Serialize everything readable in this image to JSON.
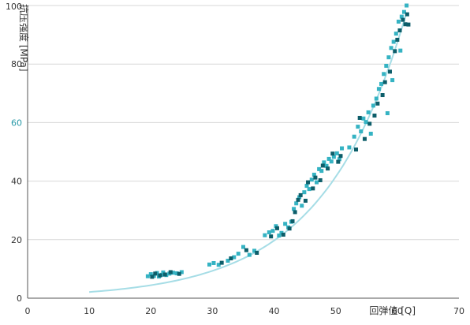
{
  "chart_data": {
    "type": "scatter",
    "xlabel": "回弹值 [Q]",
    "ylabel": "抗压强度 [MPa]",
    "xlim": [
      0,
      70
    ],
    "ylim": [
      0,
      100
    ],
    "xticks": [
      "0",
      "10",
      "20",
      "30",
      "40",
      "50",
      "60",
      "70"
    ],
    "yticks": [
      "0",
      "20",
      "40",
      "60",
      "80",
      "100"
    ],
    "highlight_ytick": "60",
    "grid": "horizontal",
    "legend": "none",
    "colors": {
      "light_points": "#35b3c3",
      "dark_points": "#0d5e6a",
      "trendline": "#a6dde6",
      "gridline": "#d7d7d7",
      "axis": "#555555",
      "accent_tick": "#2a9aa8"
    },
    "trendline": {
      "type": "exponential",
      "a": 1.0,
      "b": 0.0745,
      "x_range": [
        10,
        61.5
      ]
    },
    "series": [
      {
        "values": [
          [
            19.5,
            7.5
          ],
          [
            20.0,
            8.2
          ],
          [
            20.5,
            7.6
          ],
          [
            21.0,
            8.6
          ],
          [
            21.3,
            7.4
          ],
          [
            21.8,
            8.0
          ],
          [
            22.0,
            8.8
          ],
          [
            22.5,
            7.9
          ],
          [
            23.0,
            8.4
          ],
          [
            23.6,
            8.7
          ],
          [
            24.2,
            8.5
          ],
          [
            25.0,
            8.9
          ],
          [
            29.5,
            11.5
          ],
          [
            30.2,
            12.0
          ],
          [
            31.0,
            11.4
          ],
          [
            32.5,
            12.8
          ],
          [
            33.5,
            14.0
          ],
          [
            34.2,
            15.2
          ],
          [
            35.0,
            17.5
          ],
          [
            36.0,
            14.8
          ],
          [
            36.8,
            16.2
          ],
          [
            38.5,
            21.5
          ],
          [
            39.2,
            22.5
          ],
          [
            39.8,
            23.0
          ],
          [
            40.3,
            24.6
          ],
          [
            40.8,
            21.4
          ],
          [
            41.2,
            22.3
          ],
          [
            41.8,
            25.4
          ],
          [
            42.3,
            24.2
          ],
          [
            42.8,
            26.1
          ],
          [
            43.2,
            30.5
          ],
          [
            43.6,
            32.4
          ],
          [
            44.1,
            34.5
          ],
          [
            44.5,
            31.6
          ],
          [
            44.9,
            36.2
          ],
          [
            45.3,
            38.4
          ],
          [
            45.7,
            37.3
          ],
          [
            46.1,
            40.5
          ],
          [
            46.5,
            42.2
          ],
          [
            46.9,
            39.6
          ],
          [
            47.3,
            44.1
          ],
          [
            47.7,
            43.5
          ],
          [
            48.1,
            46.4
          ],
          [
            48.5,
            45.2
          ],
          [
            48.9,
            47.6
          ],
          [
            49.3,
            46.7
          ],
          [
            49.7,
            48.3
          ],
          [
            50.2,
            49.5
          ],
          [
            50.6,
            47.5
          ],
          [
            51.0,
            51.2
          ],
          [
            52.2,
            51.5
          ],
          [
            53.0,
            55.2
          ],
          [
            53.6,
            58.6
          ],
          [
            54.1,
            57.0
          ],
          [
            54.5,
            61.4
          ],
          [
            54.9,
            60.2
          ],
          [
            55.3,
            63.5
          ],
          [
            55.7,
            56.2
          ],
          [
            56.1,
            65.8
          ],
          [
            56.6,
            68.2
          ],
          [
            57.0,
            71.5
          ],
          [
            57.4,
            73.2
          ],
          [
            57.8,
            76.6
          ],
          [
            58.2,
            79.4
          ],
          [
            58.6,
            82.3
          ],
          [
            59.0,
            85.5
          ],
          [
            59.4,
            87.6
          ],
          [
            59.8,
            90.4
          ],
          [
            60.2,
            94.5
          ],
          [
            60.7,
            96.2
          ],
          [
            61.1,
            97.8
          ],
          [
            61.5,
            100.0
          ],
          [
            60.5,
            84.6
          ],
          [
            59.2,
            74.5
          ],
          [
            58.4,
            63.2
          ]
        ]
      },
      {
        "values": [
          [
            20.2,
            7.3
          ],
          [
            20.7,
            8.4
          ],
          [
            21.5,
            7.8
          ],
          [
            22.3,
            8.1
          ],
          [
            23.2,
            8.9
          ],
          [
            24.6,
            8.3
          ],
          [
            31.5,
            12.1
          ],
          [
            33.0,
            13.6
          ],
          [
            35.5,
            16.4
          ],
          [
            37.2,
            15.5
          ],
          [
            39.5,
            21.1
          ],
          [
            40.5,
            23.9
          ],
          [
            41.5,
            21.7
          ],
          [
            42.5,
            23.8
          ],
          [
            43.0,
            26.3
          ],
          [
            43.4,
            29.4
          ],
          [
            43.9,
            33.6
          ],
          [
            44.3,
            35.2
          ],
          [
            45.1,
            33.3
          ],
          [
            45.5,
            39.6
          ],
          [
            46.3,
            37.5
          ],
          [
            46.7,
            41.2
          ],
          [
            47.5,
            40.3
          ],
          [
            47.9,
            45.3
          ],
          [
            48.7,
            44.3
          ],
          [
            49.5,
            49.4
          ],
          [
            50.4,
            46.6
          ],
          [
            50.8,
            48.6
          ],
          [
            53.3,
            50.8
          ],
          [
            53.9,
            61.6
          ],
          [
            54.7,
            54.4
          ],
          [
            55.5,
            59.6
          ],
          [
            56.3,
            62.4
          ],
          [
            56.8,
            66.5
          ],
          [
            57.6,
            69.4
          ],
          [
            58.0,
            73.8
          ],
          [
            58.8,
            77.4
          ],
          [
            59.6,
            84.4
          ],
          [
            60.0,
            88.3
          ],
          [
            60.4,
            91.5
          ],
          [
            60.9,
            95.1
          ],
          [
            61.3,
            93.6
          ],
          [
            61.8,
            93.5
          ],
          [
            61.6,
            97.0
          ]
        ]
      }
    ]
  }
}
